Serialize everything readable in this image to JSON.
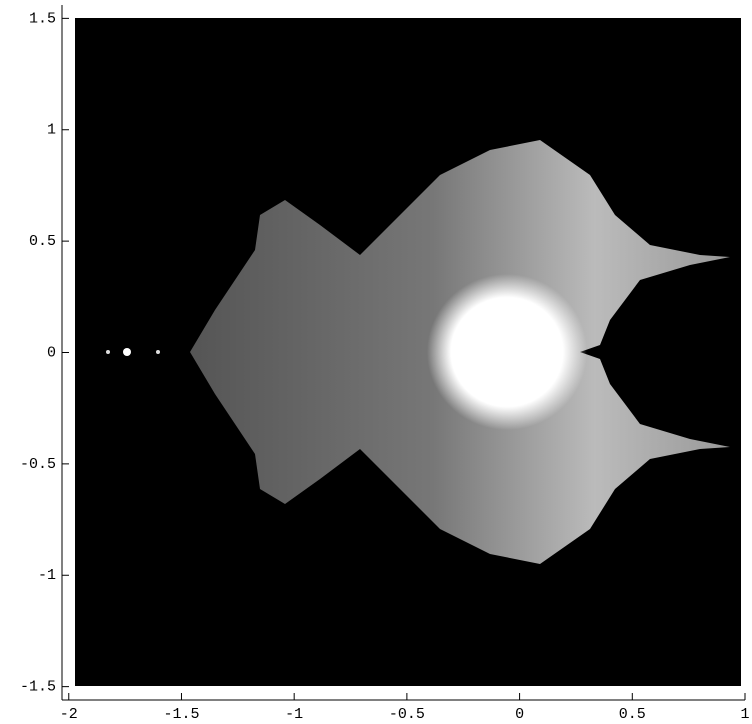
{
  "chart_data": {
    "type": "density",
    "xlim": [
      -2.03,
      1.0
    ],
    "ylim": [
      -1.56,
      1.56
    ],
    "xticks": [
      -2,
      -1.5,
      -1,
      -0.5,
      0,
      0.5,
      1
    ],
    "yticks": [
      -1.5,
      -1,
      -0.5,
      0,
      0.5,
      1,
      1.5
    ]
  }
}
